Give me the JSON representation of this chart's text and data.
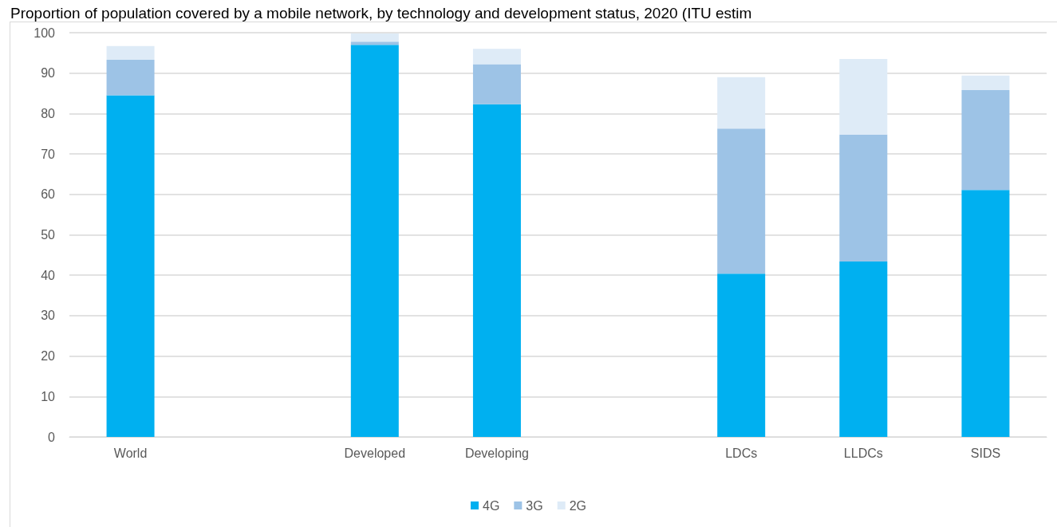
{
  "chart_data": {
    "type": "bar",
    "title": "Proportion of population covered by a mobile network, by technology and development status, 2020 (ITU estim",
    "categories": [
      "World",
      null,
      "Developed",
      "Developing",
      null,
      "LDCs",
      "LLDCs",
      "SIDS"
    ],
    "series": [
      {
        "name": "4G",
        "color": "#00b0f0",
        "values": [
          84.5,
          null,
          97.0,
          82.3,
          null,
          40.4,
          43.4,
          61.1
        ]
      },
      {
        "name": "3G",
        "color": "#9dc3e6",
        "values": [
          8.8,
          null,
          0.8,
          9.9,
          null,
          35.9,
          31.4,
          24.7
        ]
      },
      {
        "name": "2G",
        "color": "#deebf7",
        "values": [
          3.4,
          null,
          2.0,
          3.8,
          null,
          12.7,
          18.7,
          3.6
        ]
      }
    ],
    "stacked": true,
    "ylim": [
      0,
      100
    ],
    "yticks": [
      0,
      10,
      20,
      30,
      40,
      50,
      60,
      70,
      80,
      90,
      100
    ],
    "grid": "y",
    "legend": "bottom"
  }
}
